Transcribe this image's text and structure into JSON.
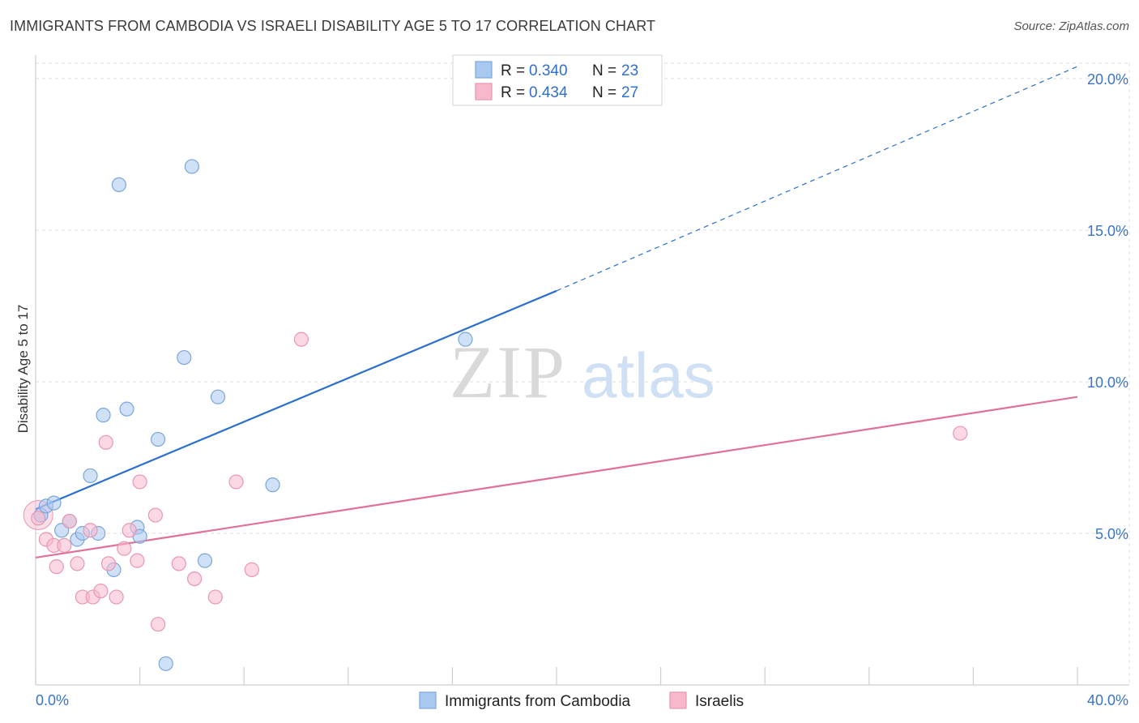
{
  "title": "IMMIGRANTS FROM CAMBODIA VS ISRAELI DISABILITY AGE 5 TO 17 CORRELATION CHART",
  "source": "Source: ZipAtlas.com",
  "watermark": {
    "zip": "ZIP",
    "atlas": "atlas"
  },
  "legend": {
    "rows": [
      {
        "r_label": "R = ",
        "r_value": "0.340",
        "n_label": "N = ",
        "n_value": "23",
        "color": "#a9c8f0"
      },
      {
        "r_label": "R = ",
        "r_value": "0.434",
        "n_label": "N = ",
        "n_value": "27",
        "color": "#f7b8cc"
      }
    ]
  },
  "bottom_legend": [
    {
      "label": "Immigrants from Cambodia",
      "color": "#a9c8f0"
    },
    {
      "label": "Israelis",
      "color": "#f7b8cc"
    }
  ],
  "chart_data": {
    "type": "scatter",
    "title": "IMMIGRANTS FROM CAMBODIA VS ISRAELI DISABILITY AGE 5 TO 17 CORRELATION CHART",
    "xlabel": "",
    "ylabel": "Disability Age 5 to 17",
    "xlim": [
      0,
      40
    ],
    "ylim": [
      0,
      20
    ],
    "x_tick_labels": [
      "0.0%",
      "40.0%"
    ],
    "y_ticks": [
      5,
      10,
      15,
      20
    ],
    "y_tick_labels": [
      "5.0%",
      "10.0%",
      "15.0%",
      "20.0%"
    ],
    "grid": true,
    "legend_placement": "top-center",
    "series": [
      {
        "name": "Immigrants from Cambodia",
        "color": "#a9c8f0",
        "stroke": "#7aa6dc",
        "trend_color": "#2a6fce",
        "trend": {
          "x0": 0,
          "y0": 5.8,
          "x1": 20,
          "y1": 13.0,
          "dashed_to_x": 40,
          "dashed_to_y": 20.4
        },
        "points": [
          [
            0.2,
            5.6
          ],
          [
            0.4,
            5.9
          ],
          [
            0.7,
            6.0
          ],
          [
            1.0,
            5.1
          ],
          [
            1.3,
            5.4
          ],
          [
            1.6,
            4.8
          ],
          [
            1.8,
            5.0
          ],
          [
            2.1,
            6.9
          ],
          [
            2.4,
            5.0
          ],
          [
            2.6,
            8.9
          ],
          [
            3.0,
            3.8
          ],
          [
            3.2,
            16.5
          ],
          [
            3.5,
            9.1
          ],
          [
            3.9,
            5.2
          ],
          [
            4.0,
            4.9
          ],
          [
            4.7,
            8.1
          ],
          [
            5.0,
            0.7
          ],
          [
            5.7,
            10.8
          ],
          [
            6.0,
            17.1
          ],
          [
            6.5,
            4.1
          ],
          [
            7.0,
            9.5
          ],
          [
            9.1,
            6.6
          ],
          [
            16.5,
            11.4
          ]
        ]
      },
      {
        "name": "Israelis",
        "color": "#f7b8cc",
        "stroke": "#e897b0",
        "trend_color": "#e07099",
        "trend": {
          "x0": 0,
          "y0": 4.2,
          "x1": 40,
          "y1": 9.5
        },
        "points": [
          [
            0.1,
            5.5
          ],
          [
            0.4,
            4.8
          ],
          [
            0.7,
            4.6
          ],
          [
            0.8,
            3.9
          ],
          [
            1.1,
            4.6
          ],
          [
            1.3,
            5.4
          ],
          [
            1.6,
            4.0
          ],
          [
            1.8,
            2.9
          ],
          [
            2.1,
            5.1
          ],
          [
            2.2,
            2.9
          ],
          [
            2.5,
            3.1
          ],
          [
            2.7,
            8.0
          ],
          [
            2.8,
            4.0
          ],
          [
            3.1,
            2.9
          ],
          [
            3.4,
            4.5
          ],
          [
            3.6,
            5.1
          ],
          [
            3.9,
            4.1
          ],
          [
            4.0,
            6.7
          ],
          [
            4.6,
            5.6
          ],
          [
            4.7,
            2.0
          ],
          [
            5.5,
            4.0
          ],
          [
            6.1,
            3.5
          ],
          [
            6.9,
            2.9
          ],
          [
            7.7,
            6.7
          ],
          [
            8.3,
            3.8
          ],
          [
            10.2,
            11.4
          ],
          [
            35.5,
            8.3
          ]
        ]
      }
    ]
  }
}
